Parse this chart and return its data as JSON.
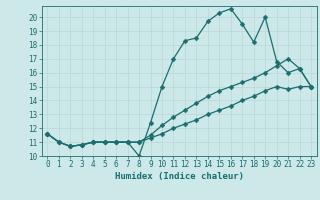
{
  "xlabel": "Humidex (Indice chaleur)",
  "background_color": "#cce8e8",
  "line_color": "#1a6e6e",
  "grid_color": "#b8d8d8",
  "xlim": [
    -0.5,
    23.5
  ],
  "ylim": [
    10,
    20.8
  ],
  "yticks": [
    10,
    11,
    12,
    13,
    14,
    15,
    16,
    17,
    18,
    19,
    20
  ],
  "xticks": [
    0,
    1,
    2,
    3,
    4,
    5,
    6,
    7,
    8,
    9,
    10,
    11,
    12,
    13,
    14,
    15,
    16,
    17,
    18,
    19,
    20,
    21,
    22,
    23
  ],
  "line1_x": [
    0,
    1,
    2,
    3,
    4,
    5,
    6,
    7,
    8,
    9,
    10,
    11,
    12,
    13,
    14,
    15,
    16,
    17,
    18,
    19,
    20,
    21,
    22,
    23
  ],
  "line1_y": [
    11.6,
    11.0,
    10.7,
    10.8,
    11.0,
    11.0,
    11.0,
    11.0,
    10.0,
    12.4,
    15.0,
    17.0,
    18.3,
    18.5,
    19.7,
    20.3,
    20.6,
    19.5,
    18.2,
    20.0,
    16.8,
    16.0,
    16.3,
    15.0
  ],
  "line2_x": [
    0,
    1,
    2,
    3,
    4,
    5,
    6,
    7,
    8,
    9,
    10,
    11,
    12,
    13,
    14,
    15,
    16,
    17,
    18,
    19,
    20,
    21,
    22,
    23
  ],
  "line2_y": [
    11.6,
    11.0,
    10.7,
    10.8,
    11.0,
    11.0,
    11.0,
    11.0,
    11.0,
    11.5,
    12.2,
    12.8,
    13.3,
    13.8,
    14.3,
    14.7,
    15.0,
    15.3,
    15.6,
    16.0,
    16.5,
    17.0,
    16.3,
    15.0
  ],
  "line3_x": [
    0,
    1,
    2,
    3,
    4,
    5,
    6,
    7,
    8,
    9,
    10,
    11,
    12,
    13,
    14,
    15,
    16,
    17,
    18,
    19,
    20,
    21,
    22,
    23
  ],
  "line3_y": [
    11.6,
    11.0,
    10.7,
    10.8,
    11.0,
    11.0,
    11.0,
    11.0,
    11.0,
    11.3,
    11.6,
    12.0,
    12.3,
    12.6,
    13.0,
    13.3,
    13.6,
    14.0,
    14.3,
    14.7,
    15.0,
    14.8,
    15.0,
    15.0
  ],
  "marker_size": 2.5,
  "line_width": 0.9,
  "tick_fontsize": 5.5,
  "xlabel_fontsize": 6.5
}
